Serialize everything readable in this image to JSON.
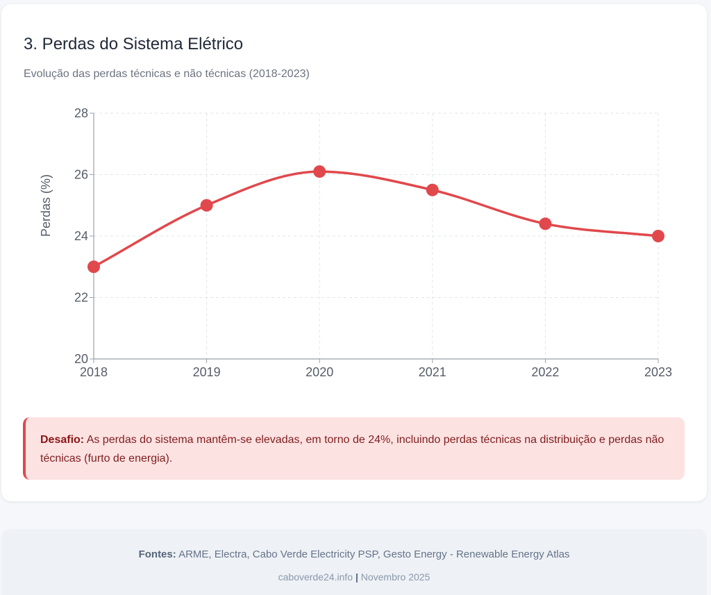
{
  "section": {
    "title": "3. Perdas do Sistema Elétrico",
    "subtitle": "Evolução das perdas técnicas e não técnicas (2018-2023)"
  },
  "chart_data": {
    "type": "line",
    "categories": [
      "2018",
      "2019",
      "2020",
      "2021",
      "2022",
      "2023"
    ],
    "series": [
      {
        "values": [
          23.0,
          25.0,
          26.1,
          25.5,
          24.4,
          24.0
        ],
        "color": "#e0484c"
      }
    ],
    "ylabel": "Perdas (%)",
    "ylim": [
      20,
      28
    ],
    "yticks": [
      20,
      22,
      24,
      26,
      28
    ],
    "grid": true,
    "smooth": true
  },
  "callout": {
    "label": "Desafio:",
    "text": " As perdas do sistema mantêm-se elevadas, em torno de 24%, incluindo perdas técnicas na distribuição e perdas não técnicas (furto de energia)."
  },
  "footer": {
    "sources_label": "Fontes:",
    "sources_text": " ARME, Electra, Cabo Verde Electricity PSP, Gesto Energy - Renewable Energy Atlas",
    "site": "caboverde24.info",
    "separator": "|",
    "date": "Novembro 2025"
  }
}
